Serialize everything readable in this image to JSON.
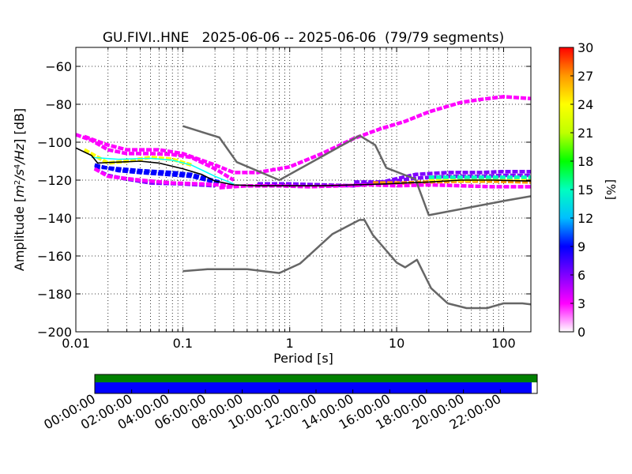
{
  "chart_data": [
    {
      "type": "heatmap",
      "title": "GU.FIVI..HNE   2025-06-06 -- 2025-06-06  (79/79 segments)",
      "xlabel": "Period [s]",
      "ylabel_parts": [
        "Amplitude [",
        "m",
        "2",
        "/",
        "s",
        "4",
        "/",
        "Hz",
        "] [dB]"
      ],
      "x_scale": "log",
      "xlim": [
        0.01,
        180
      ],
      "ylim": [
        -200,
        -50
      ],
      "grid": true,
      "x_ticks": [
        {
          "value": 0.01,
          "label": "0.01"
        },
        {
          "value": 0.1,
          "label": "0.1"
        },
        {
          "value": 1,
          "label": "1"
        },
        {
          "value": 10,
          "label": "10"
        },
        {
          "value": 100,
          "label": "100"
        }
      ],
      "y_ticks": [
        {
          "value": -60,
          "label": "−60"
        },
        {
          "value": -80,
          "label": "−80"
        },
        {
          "value": -100,
          "label": "−100"
        },
        {
          "value": -120,
          "label": "−120"
        },
        {
          "value": -140,
          "label": "−140"
        },
        {
          "value": -160,
          "label": "−160"
        },
        {
          "value": -180,
          "label": "−180"
        },
        {
          "value": -200,
          "label": "−200"
        }
      ],
      "colorbar": {
        "label": "[%]",
        "range": [
          0,
          30
        ],
        "ticks": [
          {
            "value": 0,
            "label": "0"
          },
          {
            "value": 3,
            "label": "3"
          },
          {
            "value": 6,
            "label": "6"
          },
          {
            "value": 9,
            "label": "9"
          },
          {
            "value": 12,
            "label": "12"
          },
          {
            "value": 15,
            "label": "15"
          },
          {
            "value": 18,
            "label": "18"
          },
          {
            "value": 21,
            "label": "21"
          },
          {
            "value": 24,
            "label": "24"
          },
          {
            "value": 27,
            "label": "27"
          },
          {
            "value": 30,
            "label": "30"
          }
        ],
        "colors": [
          "#ffffff",
          "#ff00ff",
          "#7f00ff",
          "#0000ff",
          "#00bfff",
          "#00ffbf",
          "#00ff00",
          "#bfff00",
          "#ffff00",
          "#ff9900",
          "#ff0000"
        ]
      },
      "noise_models": [
        {
          "points": [
            [
              0.1,
              -91.5
            ],
            [
              0.22,
              -97.5
            ],
            [
              0.32,
              -110.5
            ],
            [
              0.8,
              -120
            ],
            [
              4.5,
              -96.5
            ],
            [
              6.3,
              -101.5
            ],
            [
              8,
              -113.5
            ],
            [
              15,
              -119.5
            ],
            [
              20,
              -138.5
            ],
            [
              100,
              -131
            ],
            [
              180,
              -128.5
            ]
          ]
        },
        {
          "points": [
            [
              0.1,
              -168
            ],
            [
              0.17,
              -167
            ],
            [
              0.4,
              -167
            ],
            [
              0.8,
              -169
            ],
            [
              1.25,
              -164
            ],
            [
              2.5,
              -148.5
            ],
            [
              4.5,
              -141
            ],
            [
              5,
              -141
            ],
            [
              6,
              -149
            ],
            [
              10,
              -163.5
            ],
            [
              12,
              -166
            ],
            [
              15.5,
              -162
            ],
            [
              21,
              -177
            ],
            [
              30,
              -185
            ],
            [
              45,
              -187.5
            ],
            [
              70,
              -187.5
            ],
            [
              100,
              -185
            ],
            [
              150,
              -185
            ],
            [
              180,
              -185.5
            ]
          ]
        }
      ],
      "mode_line": {
        "color": "#000000",
        "points": [
          [
            0.01,
            -103
          ],
          [
            0.014,
            -107
          ],
          [
            0.016,
            -111
          ],
          [
            0.025,
            -110.5
          ],
          [
            0.04,
            -110
          ],
          [
            0.06,
            -111
          ],
          [
            0.1,
            -114
          ],
          [
            0.15,
            -117
          ],
          [
            0.2,
            -120.5
          ],
          [
            0.3,
            -122.5
          ],
          [
            0.5,
            -123
          ],
          [
            1,
            -123
          ],
          [
            2,
            -123
          ],
          [
            4,
            -122.5
          ],
          [
            8,
            -122
          ],
          [
            12,
            -121.5
          ],
          [
            20,
            -121
          ],
          [
            40,
            -120
          ],
          [
            80,
            -120
          ],
          [
            180,
            -120.5
          ]
        ]
      },
      "cyan_line": {
        "color": "#00ffff",
        "points": [
          [
            0.014,
            -108
          ],
          [
            0.025,
            -109
          ],
          [
            0.05,
            -108.5
          ],
          [
            0.08,
            -109.5
          ],
          [
            0.12,
            -112
          ],
          [
            0.2,
            -118
          ],
          [
            0.3,
            -122
          ]
        ]
      },
      "density_bands": [
        {
          "pct": 3,
          "points": [
            [
              0.012,
              -97
            ],
            [
              0.02,
              -101.5
            ],
            [
              0.03,
              -104
            ],
            [
              0.06,
              -104
            ],
            [
              0.1,
              -106
            ],
            [
              0.2,
              -112
            ],
            [
              0.3,
              -116
            ],
            [
              0.5,
              -116
            ],
            [
              1,
              -113
            ],
            [
              2,
              -106
            ],
            [
              4,
              -98
            ],
            [
              7,
              -93
            ],
            [
              12,
              -89
            ],
            [
              20,
              -84
            ],
            [
              40,
              -79
            ],
            [
              60,
              -77.5
            ],
            [
              100,
              -76
            ],
            [
              180,
              -77
            ]
          ]
        },
        {
          "pct": 4,
          "points": [
            [
              0.01,
              -96
            ],
            [
              0.014,
              -99
            ],
            [
              0.02,
              -104
            ],
            [
              0.03,
              -106
            ],
            [
              0.05,
              -106
            ],
            [
              0.08,
              -106.5
            ],
            [
              0.12,
              -108
            ],
            [
              0.2,
              -114
            ],
            [
              0.3,
              -120
            ]
          ]
        },
        {
          "pct": 5,
          "points": [
            [
              0.015,
              -114
            ],
            [
              0.02,
              -117.5
            ],
            [
              0.03,
              -119.5
            ],
            [
              0.05,
              -121.5
            ],
            [
              0.1,
              -122
            ],
            [
              0.2,
              -123
            ]
          ]
        },
        {
          "pct": 8,
          "points": [
            [
              0.015,
              -112
            ],
            [
              0.025,
              -115
            ],
            [
              0.04,
              -116
            ],
            [
              0.07,
              -117
            ],
            [
              0.12,
              -118
            ],
            [
              0.2,
              -121
            ]
          ]
        },
        {
          "pct": 10,
          "points": [
            [
              0.015,
              -113
            ],
            [
              0.025,
              -114
            ],
            [
              0.04,
              -115
            ],
            [
              0.08,
              -116
            ],
            [
              0.12,
              -117
            ],
            [
              0.22,
              -121
            ]
          ]
        },
        {
          "pct": 6,
          "points": [
            [
              0.5,
              -122
            ],
            [
              1,
              -122
            ],
            [
              2,
              -122.5
            ],
            [
              4,
              -123
            ],
            [
              8,
              -120.5
            ],
            [
              15,
              -117
            ],
            [
              30,
              -116
            ],
            [
              60,
              -116
            ],
            [
              100,
              -115.5
            ],
            [
              180,
              -115.5
            ]
          ]
        },
        {
          "pct": 7,
          "points": [
            [
              4,
              -121
            ],
            [
              8,
              -121
            ],
            [
              15,
              -119
            ],
            [
              30,
              -118
            ],
            [
              60,
              -118
            ],
            [
              100,
              -117.5
            ],
            [
              180,
              -117.5
            ]
          ]
        },
        {
          "pct": 28,
          "points": [
            [
              6,
              -121.5
            ],
            [
              12,
              -121.5
            ],
            [
              20,
              -121
            ],
            [
              40,
              -120.5
            ],
            [
              80,
              -120.5
            ],
            [
              180,
              -121
            ]
          ]
        },
        {
          "pct": 2,
          "points": [
            [
              0.22,
              -124
            ],
            [
              0.4,
              -123
            ],
            [
              0.8,
              -123
            ],
            [
              1.5,
              -123.5
            ],
            [
              3,
              -123
            ],
            [
              6,
              -122.5
            ],
            [
              10,
              -123
            ],
            [
              20,
              -122.5
            ],
            [
              40,
              -123
            ],
            [
              80,
              -123.5
            ],
            [
              180,
              -123.5
            ]
          ]
        },
        {
          "pct": 24,
          "points": [
            [
              20,
              -119.5
            ],
            [
              40,
              -120
            ],
            [
              80,
              -119.5
            ],
            [
              180,
              -119
            ]
          ]
        },
        {
          "pct": 14,
          "points": [
            [
              20,
              -118.5
            ],
            [
              40,
              -118.5
            ],
            [
              80,
              -118.5
            ],
            [
              180,
              -118.5
            ]
          ]
        },
        {
          "pct": 25,
          "points": [
            [
              0.012,
              -104
            ],
            [
              0.015,
              -107
            ],
            [
              0.02,
              -111
            ],
            [
              0.03,
              -110
            ],
            [
              0.05,
              -108
            ],
            [
              0.08,
              -109
            ],
            [
              0.12,
              -112
            ]
          ]
        },
        {
          "pct": 3,
          "points": [
            [
              0.015,
              -114
            ],
            [
              0.02,
              -118
            ],
            [
              0.04,
              -120
            ],
            [
              0.08,
              -121.5
            ],
            [
              0.15,
              -122
            ],
            [
              0.3,
              -123
            ]
          ]
        }
      ]
    },
    {
      "type": "bar",
      "x_ticks": [
        "00:00:00",
        "02:00:00",
        "04:00:00",
        "06:00:00",
        "08:00:00",
        "10:00:00",
        "12:00:00",
        "14:00:00",
        "16:00:00",
        "18:00:00",
        "20:00:00",
        "22:00:00"
      ],
      "xlim_hours": [
        0,
        24
      ],
      "series": [
        {
          "color": "#008000",
          "start_hours": 0,
          "end_hours": 24
        },
        {
          "color": "#0000ff",
          "start_hours": 0,
          "end_hours": 23.7
        }
      ]
    }
  ]
}
